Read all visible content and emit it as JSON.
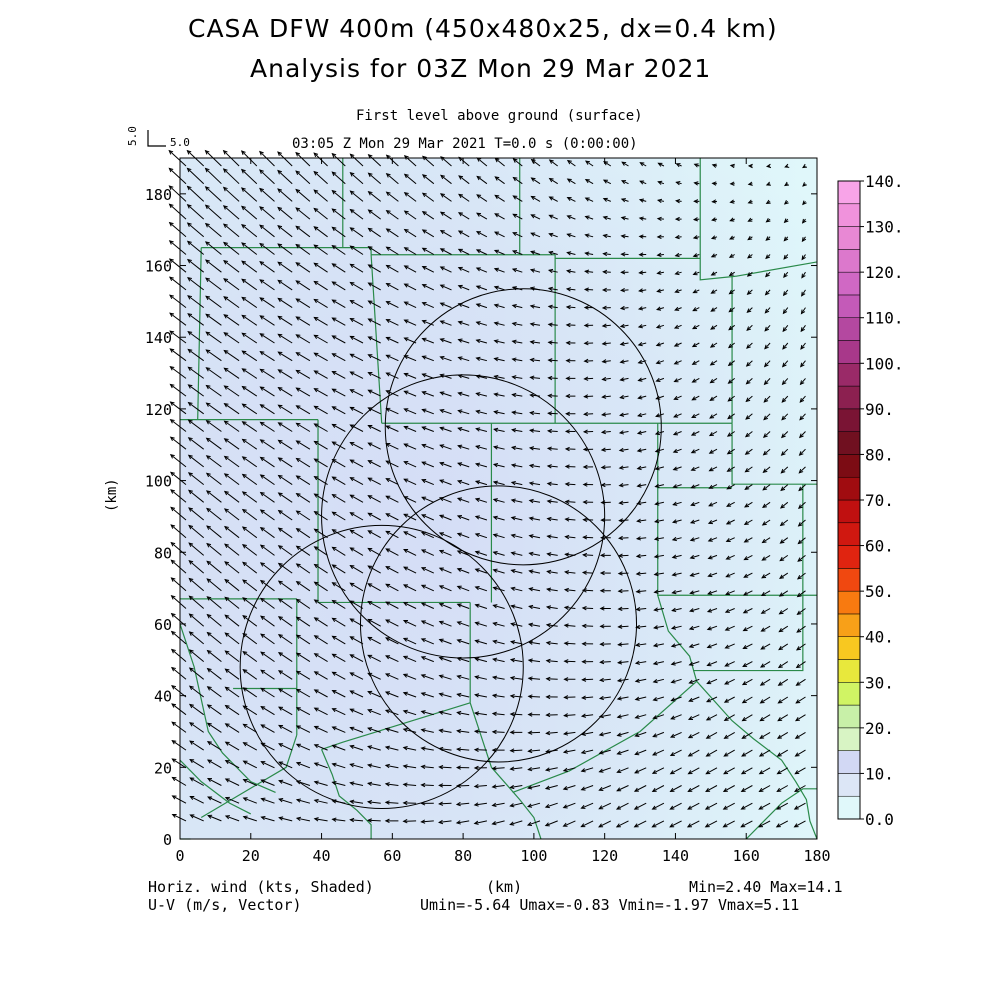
{
  "title": {
    "line1": "CASA DFW 400m (450x480x25, dx=0.4 km)",
    "line2": "Analysis for 03Z Mon 29 Mar 2021"
  },
  "subtitle": {
    "level": "First level above ground (surface)",
    "time": "03:05 Z Mon 29 Mar 2021    T=0.0 s (0:00:00)"
  },
  "ref_vector": {
    "vertical_label": "5.0",
    "horizontal_label": "5.0"
  },
  "footer": {
    "left1": "Horiz. wind (kts, Shaded)",
    "left2": "U-V (m/s, Vector)",
    "center": "(km)",
    "right1": "Min=2.40 Max=14.1",
    "right2": "Umin=-5.64 Umax=-0.83 Vmin=-1.97 Vmax=5.11"
  },
  "chart_data": {
    "type": "heatmap",
    "xlabel": "",
    "ylabel": "(km)",
    "xlim": [
      0,
      180
    ],
    "ylim": [
      0,
      190
    ],
    "xticks": [
      "0",
      "20",
      "40",
      "60",
      "80",
      "100",
      "120",
      "140",
      "160",
      "180"
    ],
    "yticks": [
      "0",
      "20",
      "40",
      "60",
      "80",
      "100",
      "120",
      "140",
      "160",
      "180"
    ],
    "shaded_field": "Horizontal wind speed (kts)",
    "field_min": 2.4,
    "field_max": 14.1,
    "wind_u_range": [
      -5.64,
      -0.83
    ],
    "wind_v_range": [
      -1.97,
      5.11
    ],
    "radar_circles": [
      {
        "cx": 97,
        "cy": 115,
        "r": 39
      },
      {
        "cx": 80,
        "cy": 90,
        "r": 40
      },
      {
        "cx": 90,
        "cy": 60,
        "r": 39
      },
      {
        "cx": 57,
        "cy": 48,
        "r": 40
      }
    ],
    "colorbar": {
      "labels": [
        "0.0",
        "10.",
        "20.",
        "30.",
        "40.",
        "50.",
        "60.",
        "70.",
        "80.",
        "90.",
        "100.",
        "110.",
        "120.",
        "130.",
        "140."
      ],
      "colors": [
        "#e0f8fa",
        "#dce6f6",
        "#d2d8f4",
        "#d8f4c4",
        "#c8f0a8",
        "#d0f464",
        "#e8e83c",
        "#f8c820",
        "#f8a018",
        "#f87a10",
        "#f04810",
        "#e02410",
        "#d01810",
        "#c01010",
        "#a00c10",
        "#7c0c14",
        "#701020",
        "#7a1434",
        "#8c2050",
        "#9a2a68",
        "#a8388a",
        "#b448a0",
        "#c45ab8",
        "#d068c4",
        "#dc78cc",
        "#e888d4",
        "#f092dc",
        "#f8a4e8"
      ],
      "min": 0,
      "max": 140
    },
    "colors": {
      "background_low": "#e0f8fa",
      "background_high": "#d2d8f4",
      "boundaries": "#2a8a4a",
      "vectors": "#000000"
    }
  }
}
